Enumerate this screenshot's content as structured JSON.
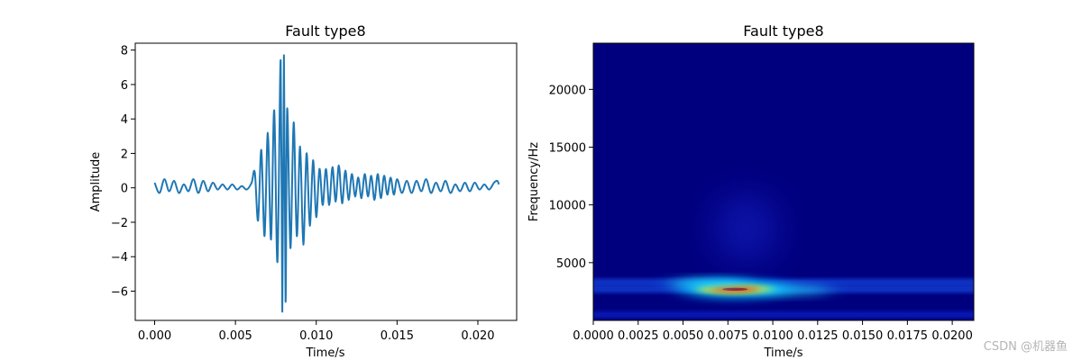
{
  "watermark": "CSDN @机器鱼",
  "chart_data": [
    {
      "type": "line",
      "title": "Fault type8",
      "xlabel": "Time/s",
      "ylabel": "Amplitude",
      "xlim": [
        -0.0012,
        0.0224
      ],
      "ylim": [
        -7.7,
        8.4
      ],
      "xticks": [
        "0.000",
        "0.005",
        "0.010",
        "0.015",
        "0.020"
      ],
      "xtick_values": [
        0.0,
        0.005,
        0.01,
        0.015,
        0.02
      ],
      "yticks": [
        "−6",
        "−4",
        "−2",
        "0",
        "2",
        "4",
        "6",
        "8"
      ],
      "ytick_values": [
        -6,
        -4,
        -2,
        0,
        2,
        4,
        6,
        8
      ],
      "grid": false,
      "line_color": "#1f77b4",
      "series": [
        {
          "x": [
            0.0,
            0.0003,
            0.0006,
            0.0009,
            0.0012,
            0.0015,
            0.0018,
            0.0021,
            0.0024,
            0.0027,
            0.003,
            0.0033,
            0.0036,
            0.0039,
            0.0042,
            0.0045,
            0.0048,
            0.0051,
            0.0054,
            0.0057,
            0.006,
            0.0062,
            0.0064,
            0.0066,
            0.0068,
            0.007,
            0.0072,
            0.0074,
            0.0076,
            0.0078,
            0.0079,
            0.008,
            0.0081,
            0.0082,
            0.0084,
            0.0086,
            0.0088,
            0.009,
            0.0092,
            0.0094,
            0.0096,
            0.0098,
            0.01,
            0.0102,
            0.0104,
            0.0106,
            0.0108,
            0.011,
            0.0112,
            0.0114,
            0.0116,
            0.0118,
            0.012,
            0.0122,
            0.0124,
            0.0126,
            0.0128,
            0.013,
            0.0132,
            0.0134,
            0.0136,
            0.0138,
            0.014,
            0.0142,
            0.0144,
            0.0146,
            0.0148,
            0.015,
            0.0153,
            0.0156,
            0.0159,
            0.0162,
            0.0165,
            0.0168,
            0.0171,
            0.0174,
            0.0177,
            0.018,
            0.0183,
            0.0186,
            0.0189,
            0.0192,
            0.0195,
            0.0198,
            0.0201,
            0.0204,
            0.0207,
            0.021,
            0.0212,
            0.0213
          ],
          "y": [
            0.3,
            -0.3,
            0.5,
            -0.2,
            0.4,
            -0.3,
            0.2,
            -0.2,
            0.5,
            -0.3,
            0.4,
            -0.2,
            0.3,
            -0.1,
            0.2,
            -0.1,
            0.2,
            -0.1,
            0.1,
            -0.1,
            0.3,
            0.9,
            -1.9,
            2.2,
            -2.8,
            3.2,
            -3.0,
            4.5,
            -4.3,
            7.4,
            -7.2,
            7.7,
            -6.6,
            4.6,
            -3.5,
            3.8,
            -2.8,
            2.4,
            -3.3,
            2.0,
            -2.2,
            1.6,
            -1.7,
            1.1,
            -1.0,
            1.1,
            -1.0,
            1.2,
            -0.8,
            1.3,
            -0.9,
            1.0,
            -0.7,
            0.8,
            -0.5,
            0.6,
            -0.6,
            0.8,
            -0.5,
            0.7,
            -0.7,
            0.8,
            -0.6,
            0.7,
            -0.4,
            0.6,
            -0.4,
            0.5,
            -0.3,
            0.4,
            -0.3,
            0.4,
            -0.2,
            0.5,
            -0.3,
            0.3,
            -0.2,
            0.4,
            -0.3,
            0.2,
            -0.2,
            0.3,
            -0.2,
            0.3,
            -0.1,
            0.2,
            -0.1,
            0.3,
            0.4,
            0.2
          ]
        }
      ]
    },
    {
      "type": "heatmap",
      "title": "Fault type8",
      "xlabel": "Time/s",
      "ylabel": "Frequency/Hz",
      "xlim": [
        0.0,
        0.0212
      ],
      "ylim": [
        0,
        24000
      ],
      "xticks": [
        "0.0000",
        "0.0025",
        "0.0050",
        "0.0075",
        "0.0100",
        "0.0125",
        "0.0150",
        "0.0175",
        "0.0200"
      ],
      "xtick_values": [
        0.0,
        0.0025,
        0.005,
        0.0075,
        0.01,
        0.0125,
        0.015,
        0.0175,
        0.02
      ],
      "yticks": [
        "5000",
        "10000",
        "15000",
        "20000"
      ],
      "ytick_values": [
        5000,
        10000,
        15000,
        20000
      ],
      "colormap": "jet",
      "background_color": "#00007f",
      "hotspots": [
        {
          "t": 0.0079,
          "f": 2700,
          "intensity": 1.0
        },
        {
          "t": 0.0065,
          "f": 3200,
          "intensity": 0.55
        },
        {
          "t": 0.011,
          "f": 2600,
          "intensity": 0.4
        },
        {
          "t": 0.0085,
          "f": 8000,
          "intensity": 0.12
        }
      ],
      "bands": [
        {
          "f": 2700,
          "intensity": 0.28
        },
        {
          "f": 3300,
          "intensity": 0.22
        },
        {
          "f": 500,
          "intensity": 0.18
        }
      ]
    }
  ]
}
